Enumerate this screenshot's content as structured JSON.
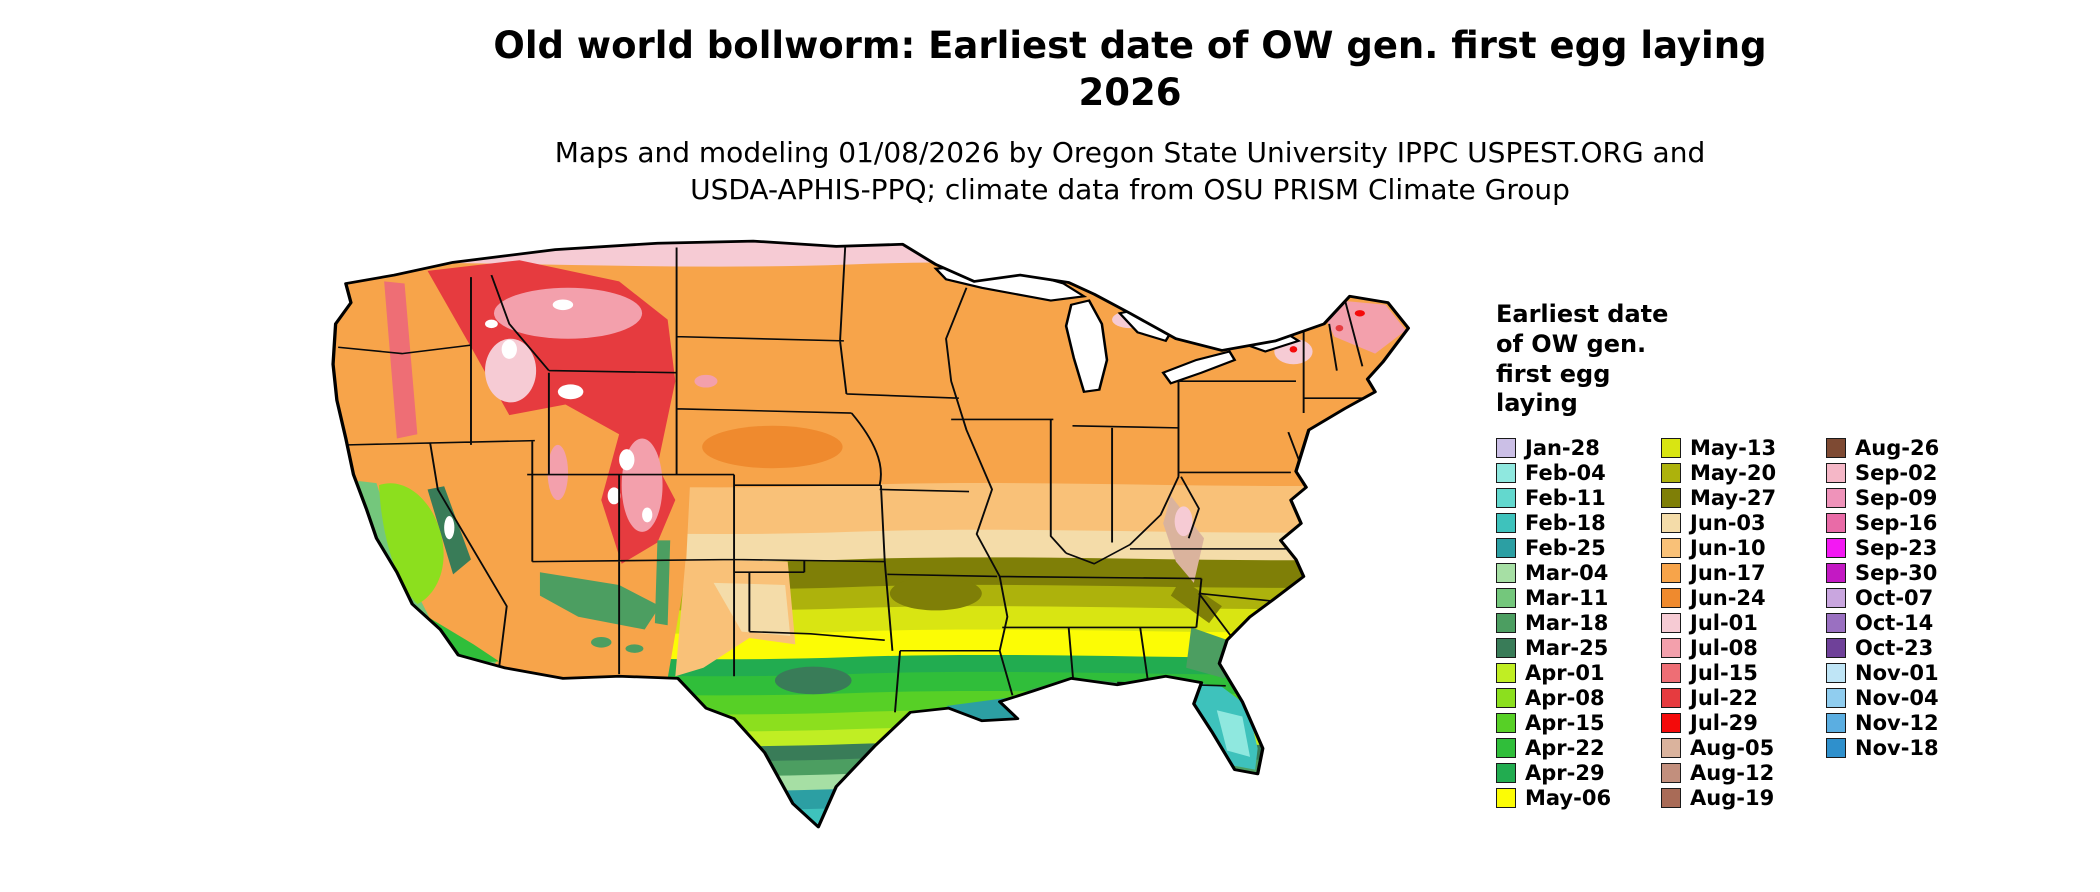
{
  "header": {
    "title_line1": "Old world bollworm: Earliest date of OW gen. first egg laying",
    "title_line2": "2026",
    "subtitle_line1": "Maps and modeling 01/08/2026 by Oregon State University IPPC USPEST.ORG and",
    "subtitle_line2": "USDA-APHIS-PPQ; climate data from OSU PRISM Climate Group"
  },
  "legend": {
    "title_lines": [
      "Earliest date",
      "of OW gen.",
      "first egg",
      "laying"
    ],
    "columns": [
      [
        {
          "label": "Jan-28",
          "color": "#CBBFE6"
        },
        {
          "label": "Feb-04",
          "color": "#8FE8DF"
        },
        {
          "label": "Feb-11",
          "color": "#63D8CE"
        },
        {
          "label": "Feb-18",
          "color": "#3EC2BC"
        },
        {
          "label": "Feb-25",
          "color": "#2C9FA3"
        },
        {
          "label": "Mar-04",
          "color": "#A6DFA4"
        },
        {
          "label": "Mar-11",
          "color": "#74C77C"
        },
        {
          "label": "Mar-18",
          "color": "#4C9E61"
        },
        {
          "label": "Mar-25",
          "color": "#397C58"
        },
        {
          "label": "Apr-01",
          "color": "#C0EE23"
        },
        {
          "label": "Apr-08",
          "color": "#8CDF1E"
        },
        {
          "label": "Apr-15",
          "color": "#57D026"
        },
        {
          "label": "Apr-22",
          "color": "#30BE3A"
        },
        {
          "label": "Apr-29",
          "color": "#22AC50"
        },
        {
          "label": "May-06",
          "color": "#FCFC05"
        }
      ],
      [
        {
          "label": "May-13",
          "color": "#D9E512"
        },
        {
          "label": "May-20",
          "color": "#ADB20C"
        },
        {
          "label": "May-27",
          "color": "#7F7F07"
        },
        {
          "label": "Jun-03",
          "color": "#F4DCA9"
        },
        {
          "label": "Jun-10",
          "color": "#F9C178"
        },
        {
          "label": "Jun-17",
          "color": "#F7A44A"
        },
        {
          "label": "Jun-24",
          "color": "#EF8A2E"
        },
        {
          "label": "Jul-01",
          "color": "#F6CBD4"
        },
        {
          "label": "Jul-08",
          "color": "#F3A0AC"
        },
        {
          "label": "Jul-15",
          "color": "#EE6E75"
        },
        {
          "label": "Jul-22",
          "color": "#E63B3F"
        },
        {
          "label": "Jul-29",
          "color": "#F40A0A"
        },
        {
          "label": "Aug-05",
          "color": "#DAB39D"
        },
        {
          "label": "Aug-12",
          "color": "#C28F7D"
        },
        {
          "label": "Aug-19",
          "color": "#A96B57"
        }
      ],
      [
        {
          "label": "Aug-26",
          "color": "#7E4A33"
        },
        {
          "label": "Sep-02",
          "color": "#F5B7C7"
        },
        {
          "label": "Sep-09",
          "color": "#EF93BA"
        },
        {
          "label": "Sep-16",
          "color": "#E96BA7"
        },
        {
          "label": "Sep-23",
          "color": "#F318F3"
        },
        {
          "label": "Sep-30",
          "color": "#C319C3"
        },
        {
          "label": "Oct-07",
          "color": "#C9A6DF"
        },
        {
          "label": "Oct-14",
          "color": "#9A70C1"
        },
        {
          "label": "Oct-23",
          "color": "#6F4199"
        },
        {
          "label": "Nov-01",
          "color": "#BFE5F6"
        },
        {
          "label": "Nov-04",
          "color": "#90CDEF"
        },
        {
          "label": "Nov-12",
          "color": "#5BAEE1"
        },
        {
          "label": "Nov-18",
          "color": "#2F90CC"
        }
      ]
    ]
  },
  "chart_data": {
    "type": "heatmap",
    "subtype": "choropleth-raster-map",
    "region": "Contiguous United States",
    "title": "Old world bollworm: Earliest date of OW gen. first egg laying 2026",
    "legend_title": "Earliest date of OW gen. first egg laying",
    "legend_position": "right",
    "classes": [
      "Jan-28",
      "Feb-04",
      "Feb-11",
      "Feb-18",
      "Feb-25",
      "Mar-04",
      "Mar-11",
      "Mar-18",
      "Mar-25",
      "Apr-01",
      "Apr-08",
      "Apr-15",
      "Apr-22",
      "Apr-29",
      "May-06",
      "May-13",
      "May-20",
      "May-27",
      "Jun-03",
      "Jun-10",
      "Jun-17",
      "Jun-24",
      "Jul-01",
      "Jul-08",
      "Jul-15",
      "Jul-22",
      "Jul-29",
      "Aug-05",
      "Aug-12",
      "Aug-19",
      "Aug-26",
      "Sep-02",
      "Sep-09",
      "Sep-16",
      "Sep-23",
      "Sep-30",
      "Oct-07",
      "Oct-14",
      "Oct-23",
      "Nov-01",
      "Nov-04",
      "Nov-12",
      "Nov-18"
    ],
    "map_bands_north_to_south": [
      "Jul-01",
      "Jun-17",
      "Jun-10",
      "Jun-03",
      "May-27",
      "May-20",
      "May-13",
      "May-06",
      "Apr-29",
      "Apr-22",
      "Apr-15",
      "Apr-08",
      "Apr-01",
      "Mar-25",
      "Mar-18",
      "Mar-04",
      "Feb-25",
      "Feb-18",
      "Feb-11",
      "Feb-04"
    ],
    "notable_features": [
      {
        "area": "Northern Rockies (MT/ID/WY/CO)",
        "label": "Jul-22"
      },
      {
        "area": "High peaks (snow)",
        "label": "white / no egg laying"
      },
      {
        "area": "California Central Valley",
        "label": "Apr-08"
      },
      {
        "area": "California coast",
        "label": "Mar-11"
      },
      {
        "area": "South Texas",
        "label": "Feb-11"
      },
      {
        "area": "Florida peninsula",
        "label": "Feb-18"
      },
      {
        "area": "Gulf coast strip",
        "label": "Feb-25"
      },
      {
        "area": "Central olive band (KS-MO-KY-VA)",
        "label": "May-27"
      },
      {
        "area": "Northern Maine / Adirondacks",
        "label": "Jul-08"
      },
      {
        "area": "Appalachians (WV)",
        "label": "Aug-05"
      }
    ]
  }
}
